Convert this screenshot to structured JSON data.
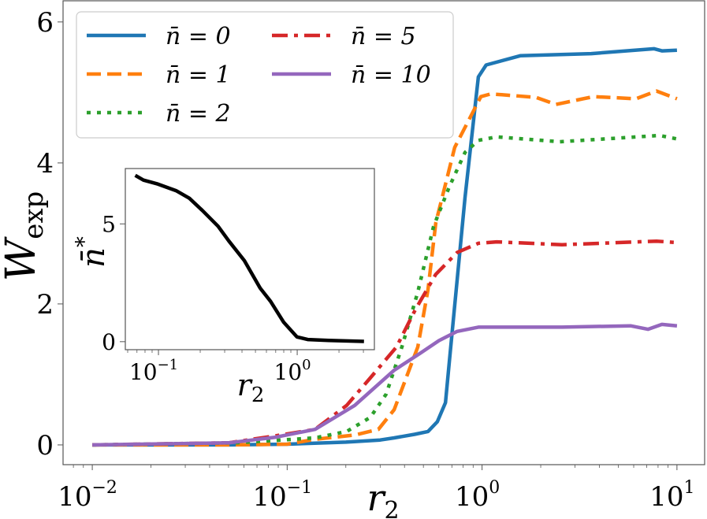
{
  "chart_data": [
    {
      "type": "line",
      "xscale": "log",
      "xlim": [
        0.00708,
        13.87
      ],
      "ylim": [
        -0.28,
        6.3
      ],
      "xlabel": {
        "base": "r",
        "sub": "2"
      },
      "ylabel": {
        "base": "W",
        "sub": "exp"
      },
      "xticks": [
        {
          "value": 0.01,
          "base": "10",
          "exp": "−2"
        },
        {
          "value": 0.1,
          "base": "10",
          "exp": "−1"
        },
        {
          "value": 1,
          "base": "10",
          "exp": "0"
        },
        {
          "value": 10,
          "base": "10",
          "exp": "1"
        }
      ],
      "yticks": [
        {
          "value": 0,
          "label": "0"
        },
        {
          "value": 2,
          "label": "2"
        },
        {
          "value": 4,
          "label": "4"
        },
        {
          "value": 6,
          "label": "6"
        }
      ],
      "grid": false,
      "legend_position": "top-left",
      "series": [
        {
          "name": "n̄ = 0",
          "color": "#1f77b4",
          "style": "solid",
          "x": [
            0.01,
            0.05,
            0.1,
            0.2,
            0.3,
            0.354,
            0.45,
            0.528,
            0.59,
            0.649,
            0.679,
            0.818,
            0.957,
            1.05,
            1.57,
            3.63,
            7.64,
            8.37,
            10
          ],
          "y": [
            0,
            0,
            0.01,
            0.04,
            0.07,
            0.1,
            0.15,
            0.19,
            0.33,
            0.6,
            1.17,
            3.51,
            5.22,
            5.39,
            5.52,
            5.55,
            5.62,
            5.59,
            5.6
          ]
        },
        {
          "name": "n̄ = 1",
          "color": "#ff7f0e",
          "style": "dashed",
          "x": [
            0.01,
            0.05,
            0.1,
            0.139,
            0.222,
            0.294,
            0.354,
            0.468,
            0.528,
            0.579,
            0.724,
            0.986,
            1.11,
            1.89,
            2.39,
            3.73,
            6.17,
            7.86,
            10
          ],
          "y": [
            0,
            0,
            0.01,
            0.08,
            0.14,
            0.22,
            0.5,
            1.39,
            2.2,
            3.15,
            4.22,
            4.94,
            4.98,
            4.93,
            4.83,
            4.94,
            4.91,
            5.02,
            4.91
          ]
        },
        {
          "name": "n̄ = 2",
          "color": "#2ca02c",
          "style": "dotted",
          "x": [
            0.01,
            0.055,
            0.139,
            0.202,
            0.267,
            0.322,
            0.388,
            0.468,
            0.564,
            0.679,
            0.818,
            0.957,
            1.19,
            2.5,
            8.15,
            10
          ],
          "y": [
            0,
            0.03,
            0.1,
            0.19,
            0.39,
            0.72,
            1.39,
            2.17,
            3.1,
            3.66,
            4.15,
            4.32,
            4.37,
            4.3,
            4.39,
            4.34
          ]
        },
        {
          "name": "n̄ = 5",
          "color": "#d62728",
          "style": "dashdot",
          "x": [
            0.01,
            0.05,
            0.0875,
            0.139,
            0.202,
            0.267,
            0.364,
            0.455,
            0.579,
            0.745,
            0.957,
            1.19,
            2.57,
            7.86,
            10
          ],
          "y": [
            0,
            0.03,
            0.13,
            0.22,
            0.56,
            0.95,
            1.39,
            1.92,
            2.42,
            2.73,
            2.86,
            2.88,
            2.84,
            2.89,
            2.87
          ]
        },
        {
          "name": "n̄ = 10",
          "color": "#9467bd",
          "style": "solid",
          "x": [
            0.01,
            0.05,
            0.0875,
            0.139,
            0.222,
            0.354,
            0.481,
            0.601,
            0.745,
            0.957,
            2.57,
            5.78,
            7.1,
            8.37,
            10
          ],
          "y": [
            0,
            0.03,
            0.11,
            0.22,
            0.56,
            1.06,
            1.3,
            1.48,
            1.61,
            1.67,
            1.67,
            1.69,
            1.64,
            1.71,
            1.69
          ]
        }
      ]
    },
    {
      "type": "line",
      "xscale": "log",
      "xlim": [
        0.0577,
        3.6
      ],
      "ylim": [
        -0.34,
        7.35
      ],
      "xlabel": {
        "base": "r",
        "sub": "2"
      },
      "ylabel": {
        "base": "n̄",
        "sup": "*"
      },
      "xticks": [
        {
          "value": 0.1,
          "base": "10",
          "exp": "−1"
        },
        {
          "value": 1,
          "base": "10",
          "exp": "0"
        }
      ],
      "yticks": [
        {
          "value": 0,
          "label": "0"
        },
        {
          "value": 5,
          "label": "5"
        }
      ],
      "grid": false,
      "series": [
        {
          "color": "#000000",
          "style": "solid",
          "x": [
            0.068,
            0.078,
            0.099,
            0.134,
            0.167,
            0.207,
            0.269,
            0.321,
            0.416,
            0.541,
            0.643,
            0.8,
            0.995,
            1.19,
            1.68,
            3.03
          ],
          "y": [
            7.06,
            6.86,
            6.69,
            6.41,
            6.09,
            5.57,
            4.9,
            4.28,
            3.44,
            2.27,
            1.71,
            0.82,
            0.2,
            0.09,
            0.05,
            0.01
          ]
        }
      ]
    }
  ]
}
